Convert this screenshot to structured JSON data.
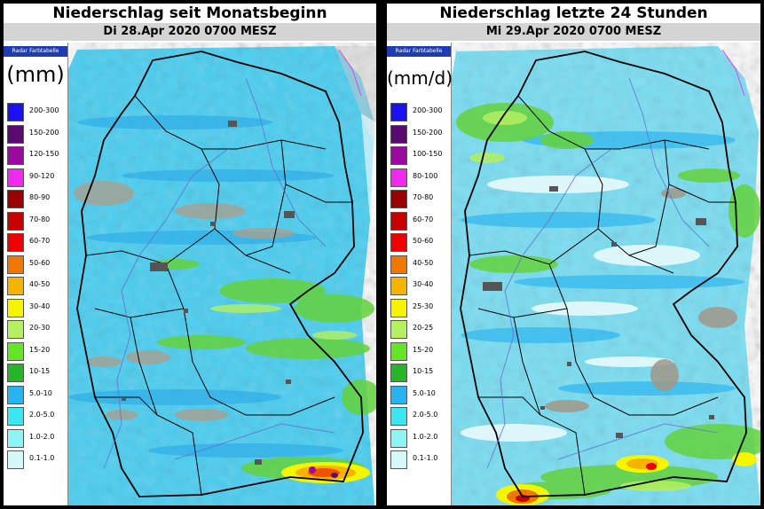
{
  "left": {
    "title": "Niederschlag seit Monatsbeginn",
    "subtitle": "Di 28.Apr 2020 0700 MESZ",
    "legend_header": "Radar Farbtabelle",
    "unit": "(mm)",
    "legend": [
      {
        "label": "200-300",
        "color": "#1a10f0"
      },
      {
        "label": "150-200",
        "color": "#5a0a6e"
      },
      {
        "label": "120-150",
        "color": "#9a0aa0"
      },
      {
        "label": "90-120",
        "color": "#f028f0"
      },
      {
        "label": "80-90",
        "color": "#9a0000"
      },
      {
        "label": "70-80",
        "color": "#c80000"
      },
      {
        "label": "60-70",
        "color": "#f00000"
      },
      {
        "label": "50-60",
        "color": "#f07800"
      },
      {
        "label": "40-50",
        "color": "#f5b400"
      },
      {
        "label": "30-40",
        "color": "#f5f500"
      },
      {
        "label": "20-30",
        "color": "#b4f060"
      },
      {
        "label": "15-20",
        "color": "#64e628"
      },
      {
        "label": "10-15",
        "color": "#28b428"
      },
      {
        "label": "5.0-10",
        "color": "#28b4f0"
      },
      {
        "label": "2.0-5.0",
        "color": "#3ce6f0"
      },
      {
        "label": "1.0-2.0",
        "color": "#8cf5f5"
      },
      {
        "label": "0.1-1.0",
        "color": "#d2fafa"
      }
    ]
  },
  "right": {
    "title": "Niederschlag letzte 24 Stunden",
    "subtitle": "Mi 29.Apr 2020 0700 MESZ",
    "legend_header": "Radar Farbtabelle",
    "unit": "(mm/d)",
    "legend": [
      {
        "label": "200-300",
        "color": "#1a10f0"
      },
      {
        "label": "150-200",
        "color": "#5a0a6e"
      },
      {
        "label": "100-150",
        "color": "#9a0aa0"
      },
      {
        "label": "80-100",
        "color": "#f028f0"
      },
      {
        "label": "70-80",
        "color": "#9a0000"
      },
      {
        "label": "60-70",
        "color": "#c80000"
      },
      {
        "label": "50-60",
        "color": "#f00000"
      },
      {
        "label": "40-50",
        "color": "#f07800"
      },
      {
        "label": "30-40",
        "color": "#f5b400"
      },
      {
        "label": "25-30",
        "color": "#f5f500"
      },
      {
        "label": "20-25",
        "color": "#b4f060"
      },
      {
        "label": "15-20",
        "color": "#64e628"
      },
      {
        "label": "10-15",
        "color": "#28b428"
      },
      {
        "label": "5.0-10",
        "color": "#28b4f0"
      },
      {
        "label": "2.0-5.0",
        "color": "#3ce6f0"
      },
      {
        "label": "1.0-2.0",
        "color": "#8cf5f5"
      },
      {
        "label": "0.1-1.0",
        "color": "#d2fafa"
      }
    ]
  }
}
